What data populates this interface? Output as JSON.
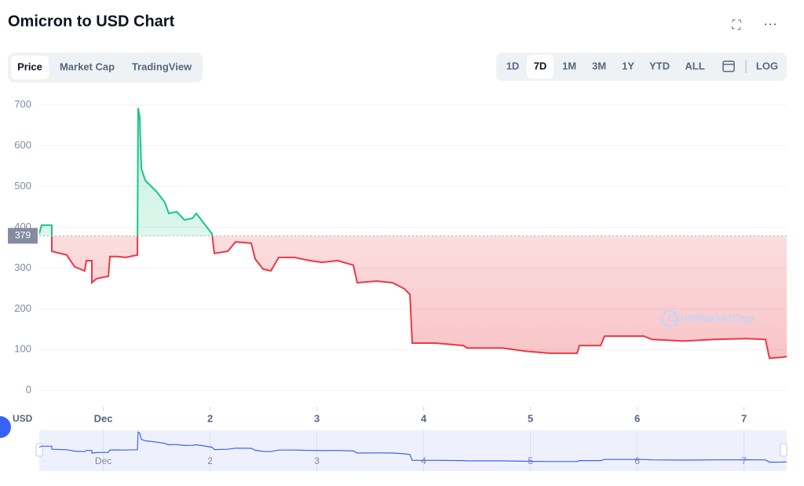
{
  "header": {
    "title": "Omicron to USD Chart"
  },
  "tabs": [
    "Price",
    "Market Cap",
    "TradingView"
  ],
  "ranges": [
    "1D",
    "7D",
    "1M",
    "3M",
    "1Y",
    "YTD",
    "ALL"
  ],
  "scale_toggle": "LOG",
  "currency": "USD",
  "watermark": "CoinMarketCap",
  "chart_data": {
    "type": "line",
    "x": [
      0.4,
      0.422,
      0.518,
      0.518,
      0.657,
      0.731,
      0.826,
      0.841,
      0.893,
      0.893,
      0.937,
      1.047,
      1.062,
      1.135,
      1.209,
      1.319,
      1.326,
      1.341,
      1.356,
      1.393,
      1.503,
      1.576,
      1.613,
      1.687,
      1.76,
      1.834,
      1.871,
      1.944,
      2.018,
      2.04,
      2.165,
      2.238,
      2.385,
      2.422,
      2.496,
      2.569,
      2.643,
      2.79,
      2.937,
      3.047,
      3.194,
      3.341,
      3.378,
      3.562,
      3.709,
      3.819,
      3.871,
      3.893,
      4.113,
      4.371,
      4.407,
      4.738,
      4.959,
      5.179,
      5.437,
      5.459,
      5.657,
      5.694,
      6.062,
      6.135,
      6.429,
      6.724,
      7.018,
      7.201,
      7.238,
      7.349,
      7.4
    ],
    "series": [
      {
        "name": "Price",
        "values": [
          384,
          405,
          405,
          341,
          332,
          303,
          293,
          318,
          318,
          264,
          274,
          280,
          328,
          328,
          326,
          332,
          692,
          669,
          544,
          515,
          486,
          461,
          434,
          438,
          418,
          422,
          434,
          409,
          384,
          336,
          341,
          364,
          361,
          322,
          297,
          293,
          326,
          326,
          318,
          314,
          318,
          307,
          264,
          268,
          264,
          249,
          235,
          116,
          116,
          110,
          104,
          104,
          96,
          91,
          91,
          110,
          110,
          133,
          133,
          125,
          121,
          125,
          127,
          125,
          79,
          81,
          83
        ]
      }
    ],
    "baseline": 379,
    "up_color": "#16c784",
    "down_color": "#ea3943",
    "xlim": [
      0.4,
      7.4
    ],
    "xticks": [
      {
        "value": 1,
        "label": "Dec"
      },
      2,
      3,
      4,
      5,
      6,
      7
    ],
    "ylim": [
      -40,
      730
    ],
    "yticks": [
      0,
      100,
      200,
      300,
      400,
      500,
      600,
      700
    ],
    "grid": true
  }
}
